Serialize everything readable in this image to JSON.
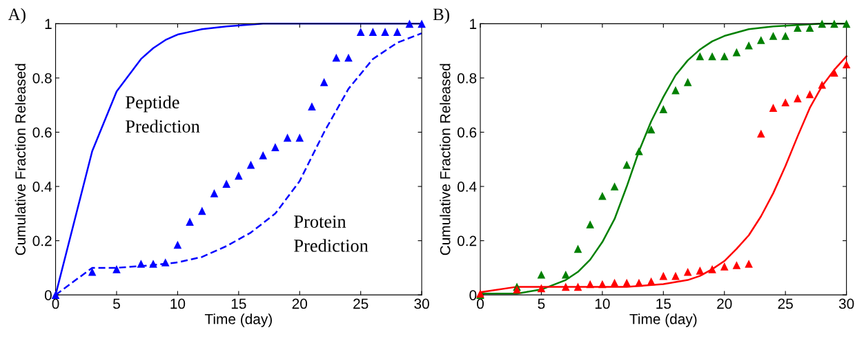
{
  "chart_data": [
    {
      "type": "line",
      "title": "A)",
      "xlabel": "Time (day)",
      "ylabel": "Cumulative Fraction Released",
      "xlim": [
        0,
        30
      ],
      "xticks": [
        0,
        5,
        10,
        15,
        20,
        25,
        30
      ],
      "ylim": [
        0,
        1
      ],
      "yticks": [
        0,
        0.2,
        0.4,
        0.6,
        0.8,
        1
      ],
      "grid": false,
      "legend": false,
      "annotations": [
        "Peptide\nPrediction",
        "Protein\nPrediction"
      ],
      "series": [
        {
          "type": "line",
          "line_style": "solid",
          "marker": "none",
          "color": "#0000ff",
          "x": [
            0,
            3,
            5,
            7,
            8,
            9,
            10,
            11,
            12,
            14,
            17,
            30
          ],
          "values": [
            0,
            0.53,
            0.75,
            0.87,
            0.91,
            0.94,
            0.96,
            0.97,
            0.98,
            0.99,
            1,
            1
          ]
        },
        {
          "type": "line",
          "line_style": "dashed",
          "marker": "none",
          "color": "#0000ff",
          "x": [
            0,
            3,
            5,
            8,
            10,
            12,
            14,
            16,
            18,
            20,
            22,
            24,
            26,
            28,
            30
          ],
          "values": [
            0,
            0.1,
            0.1,
            0.11,
            0.12,
            0.14,
            0.18,
            0.23,
            0.3,
            0.42,
            0.6,
            0.76,
            0.87,
            0.93,
            0.965
          ]
        },
        {
          "type": "scatter",
          "marker": "triangle",
          "color": "#0000ff",
          "x": [
            0,
            3,
            5,
            7,
            8,
            9,
            10,
            11,
            12,
            13,
            14,
            15,
            16,
            17,
            18,
            19,
            20,
            21,
            22,
            23,
            24,
            25,
            26,
            27,
            28,
            29,
            30
          ],
          "values": [
            0,
            0.085,
            0.095,
            0.115,
            0.115,
            0.12,
            0.185,
            0.27,
            0.31,
            0.375,
            0.41,
            0.44,
            0.48,
            0.515,
            0.545,
            0.58,
            0.58,
            0.695,
            0.785,
            0.875,
            0.875,
            0.97,
            0.97,
            0.97,
            0.97,
            1,
            1
          ]
        }
      ]
    },
    {
      "type": "line",
      "title": "B)",
      "xlabel": "Time (day)",
      "ylabel": "Cumulative Fraction Released",
      "xlim": [
        0,
        30
      ],
      "xticks": [
        0,
        5,
        10,
        15,
        20,
        25,
        30
      ],
      "ylim": [
        0,
        1
      ],
      "yticks": [
        0,
        0.2,
        0.4,
        0.6,
        0.8,
        1
      ],
      "grid": false,
      "legend": false,
      "series": [
        {
          "type": "line",
          "line_style": "solid",
          "marker": "none",
          "color": "#008000",
          "x": [
            0,
            3,
            5,
            7,
            8,
            9,
            10,
            11,
            12,
            13,
            14,
            15,
            16,
            17,
            18,
            19,
            20,
            22,
            24,
            26,
            28,
            30
          ],
          "values": [
            0.005,
            0.005,
            0.02,
            0.055,
            0.085,
            0.13,
            0.195,
            0.28,
            0.4,
            0.53,
            0.64,
            0.73,
            0.81,
            0.865,
            0.905,
            0.935,
            0.955,
            0.98,
            0.99,
            0.995,
            1,
            1
          ]
        },
        {
          "type": "line",
          "line_style": "solid",
          "marker": "none",
          "color": "#ff0000",
          "x": [
            0,
            3,
            12,
            15,
            17,
            18,
            19,
            20,
            21,
            22,
            23,
            24,
            25,
            26,
            27,
            28,
            29,
            30
          ],
          "values": [
            0.01,
            0.03,
            0.03,
            0.04,
            0.055,
            0.07,
            0.095,
            0.125,
            0.17,
            0.22,
            0.29,
            0.375,
            0.475,
            0.585,
            0.69,
            0.77,
            0.83,
            0.88
          ]
        },
        {
          "type": "scatter",
          "marker": "triangle",
          "color": "#008000",
          "x": [
            0,
            3,
            5,
            7,
            8,
            9,
            10,
            11,
            12,
            13,
            14,
            15,
            16,
            17,
            18,
            19,
            20,
            21,
            22,
            23,
            24,
            25,
            26,
            27,
            28,
            29,
            30
          ],
          "values": [
            0,
            0.03,
            0.075,
            0.075,
            0.17,
            0.26,
            0.365,
            0.4,
            0.48,
            0.53,
            0.61,
            0.685,
            0.755,
            0.785,
            0.88,
            0.88,
            0.88,
            0.895,
            0.92,
            0.94,
            0.955,
            0.955,
            0.985,
            0.985,
            1,
            1,
            1
          ]
        },
        {
          "type": "scatter",
          "marker": "triangle",
          "color": "#ff0000",
          "x": [
            0,
            3,
            5,
            7,
            8,
            9,
            10,
            11,
            12,
            13,
            14,
            15,
            16,
            17,
            18,
            19,
            20,
            21,
            22,
            23,
            24,
            25,
            26,
            27,
            28,
            29,
            30
          ],
          "values": [
            0.005,
            0.02,
            0.025,
            0.03,
            0.03,
            0.04,
            0.04,
            0.045,
            0.045,
            0.045,
            0.05,
            0.07,
            0.07,
            0.085,
            0.09,
            0.095,
            0.105,
            0.11,
            0.115,
            0.595,
            0.69,
            0.71,
            0.725,
            0.74,
            0.775,
            0.82,
            0.85
          ]
        }
      ]
    }
  ]
}
